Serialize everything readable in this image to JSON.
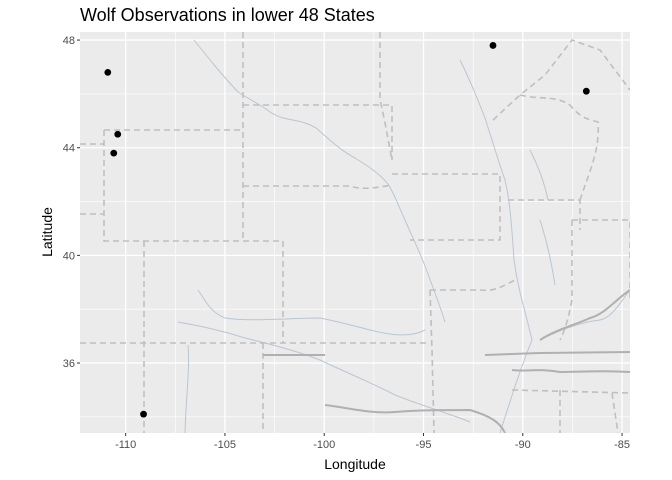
{
  "chart_data": {
    "type": "scatter",
    "title": "Wolf Observations in lower 48 States",
    "xlabel": "Longitude",
    "ylabel": "Latitude",
    "xlim": [
      -112.3,
      -84.6
    ],
    "ylim": [
      33.4,
      48.3
    ],
    "x_ticks": [
      -110,
      -105,
      -100,
      -95,
      -90,
      -85
    ],
    "y_ticks": [
      36,
      40,
      44,
      48
    ],
    "grid": true,
    "legend": "none",
    "background_color": "#ebebeb",
    "grid_color": "#ffffff",
    "point_color": "#000000",
    "boundary_color": "#bfbfbf",
    "river_color": "#b4c4d4",
    "points": [
      {
        "x": -110.9,
        "y": 46.8
      },
      {
        "x": -110.4,
        "y": 44.5
      },
      {
        "x": -110.6,
        "y": 43.8
      },
      {
        "x": -91.5,
        "y": 47.8
      },
      {
        "x": -86.8,
        "y": 46.1
      },
      {
        "x": -109.1,
        "y": 34.1
      }
    ]
  }
}
